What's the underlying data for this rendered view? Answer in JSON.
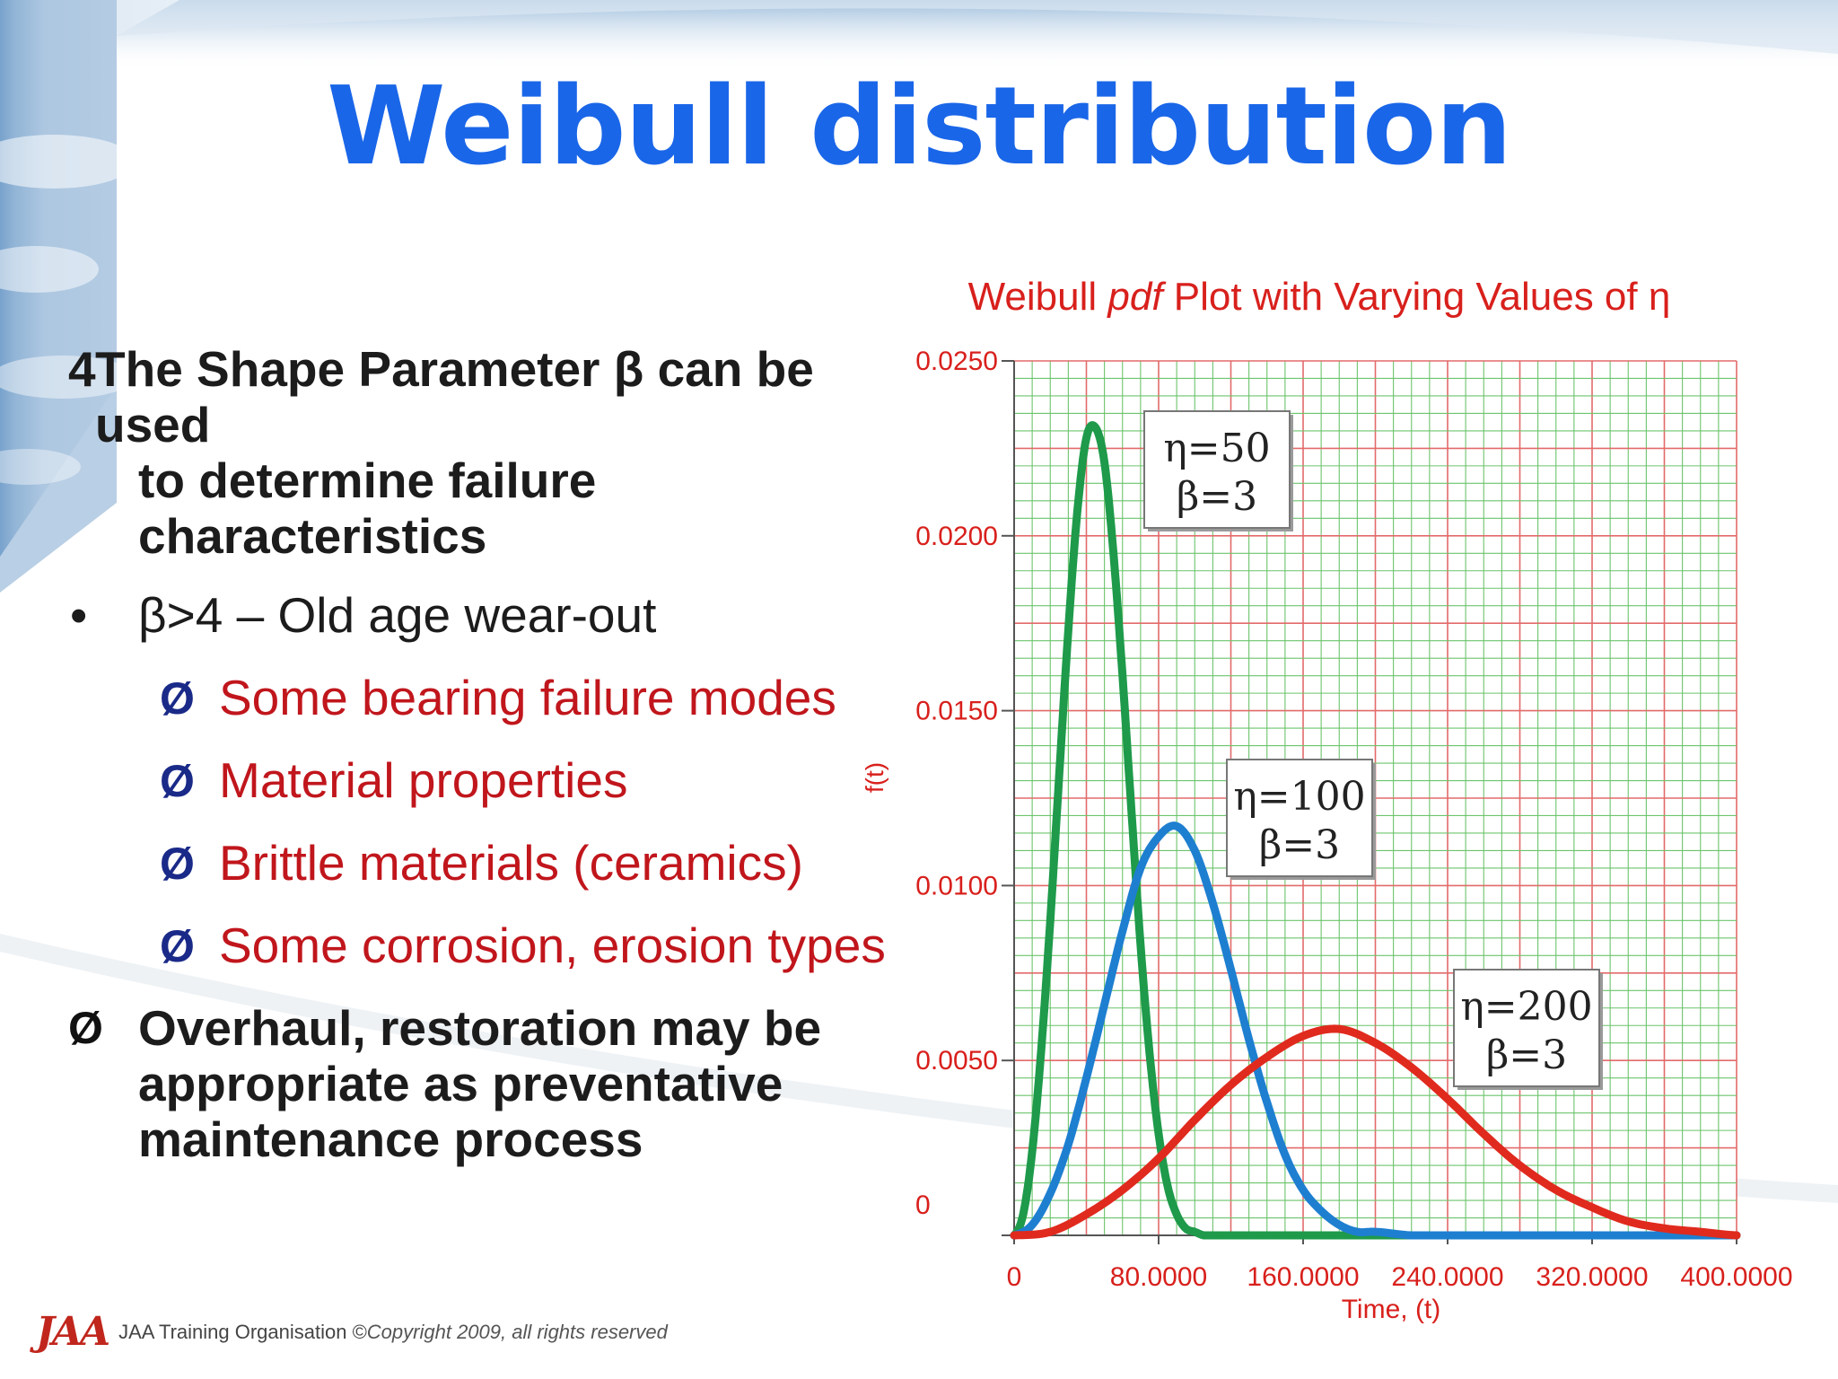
{
  "slide": {
    "title": "Weibull distribution",
    "bullets": {
      "main_num": "4",
      "main_line1": "The Shape Parameter β can be used",
      "main_line2": "to determine failure characteristics",
      "beta_dot": "•",
      "beta_text": "β>4 – Old age wear-out",
      "sub_icon": "Ø",
      "sub_items": [
        "Some bearing failure modes",
        "Material properties",
        "Brittle materials (ceramics)",
        "Some corrosion, erosion types"
      ],
      "overhaul_icon": "Ø",
      "overhaul_lines": [
        "Overhaul, restoration may be",
        "appropriate as preventative",
        "maintenance process"
      ]
    },
    "footer": {
      "logo": "JAA",
      "org": "JAA Training Organisation ©",
      "copyright": "Copyright 2009, all rights reserved"
    }
  },
  "chart_data": {
    "type": "line",
    "title_prefix": "Weibull ",
    "title_italic": "pdf",
    "title_suffix": " Plot with Varying Values of η",
    "xlabel": "Time, (t)",
    "ylabel": "f(t)",
    "xlim": [
      0,
      400
    ],
    "ylim": [
      0,
      0.025
    ],
    "x_ticks": [
      {
        "value": 0,
        "label": "0"
      },
      {
        "value": 80,
        "label": "80.0000"
      },
      {
        "value": 160,
        "label": "160.0000"
      },
      {
        "value": 240,
        "label": "240.0000"
      },
      {
        "value": 320,
        "label": "320.0000"
      },
      {
        "value": 400,
        "label": "400.0000"
      }
    ],
    "y_ticks": [
      {
        "value": 0,
        "label": "0"
      },
      {
        "value": 0.005,
        "label": "0.0050"
      },
      {
        "value": 0.01,
        "label": "0.0100"
      },
      {
        "value": 0.015,
        "label": "0.0150"
      },
      {
        "value": 0.02,
        "label": "0.0200"
      },
      {
        "value": 0.025,
        "label": "0.0250"
      }
    ],
    "grid": true,
    "series": [
      {
        "label_eta": "η=50",
        "label_beta": "β=3",
        "color": "#1e9a4a",
        "x": [
          0,
          5,
          10,
          15,
          20,
          25,
          30,
          35,
          40,
          45,
          50,
          55,
          60,
          65,
          70,
          75,
          80,
          85,
          90,
          95,
          100,
          105,
          110,
          120,
          140,
          160,
          200,
          300,
          400
        ],
        "y": [
          0,
          0.0006,
          0.0024,
          0.0053,
          0.009,
          0.0132,
          0.0173,
          0.0207,
          0.0228,
          0.0231,
          0.0221,
          0.0195,
          0.016,
          0.0121,
          0.0083,
          0.0052,
          0.0029,
          0.0014,
          0.0006,
          0.0002,
          0.0001,
          0.0,
          0.0,
          0.0,
          0.0,
          0.0,
          0.0,
          0.0,
          0.0
        ]
      },
      {
        "label_eta": "η=100",
        "label_beta": "β=3",
        "color": "#1e7fd0",
        "x": [
          0,
          10,
          20,
          30,
          40,
          50,
          60,
          70,
          80,
          90,
          100,
          110,
          120,
          130,
          140,
          150,
          160,
          170,
          180,
          190,
          200,
          220,
          240,
          280,
          320,
          400
        ],
        "y": [
          0,
          0.0003,
          0.0012,
          0.0026,
          0.0045,
          0.0066,
          0.0087,
          0.0105,
          0.0114,
          0.0117,
          0.011,
          0.0095,
          0.0076,
          0.0056,
          0.0038,
          0.0023,
          0.0013,
          0.0007,
          0.0003,
          0.0001,
          0.0001,
          0.0,
          0.0,
          0.0,
          0.0,
          0.0
        ]
      },
      {
        "label_eta": "η=200",
        "label_beta": "β=3",
        "color": "#e02a1e",
        "x": [
          0,
          20,
          40,
          60,
          80,
          100,
          120,
          140,
          160,
          180,
          200,
          220,
          240,
          260,
          280,
          300,
          320,
          340,
          360,
          380,
          400
        ],
        "y": [
          0,
          0.0001,
          0.0006,
          0.0013,
          0.0022,
          0.0033,
          0.0043,
          0.0051,
          0.0057,
          0.0059,
          0.0055,
          0.0048,
          0.0039,
          0.0029,
          0.002,
          0.0013,
          0.0008,
          0.0004,
          0.0002,
          0.0001,
          0.0
        ]
      }
    ]
  }
}
